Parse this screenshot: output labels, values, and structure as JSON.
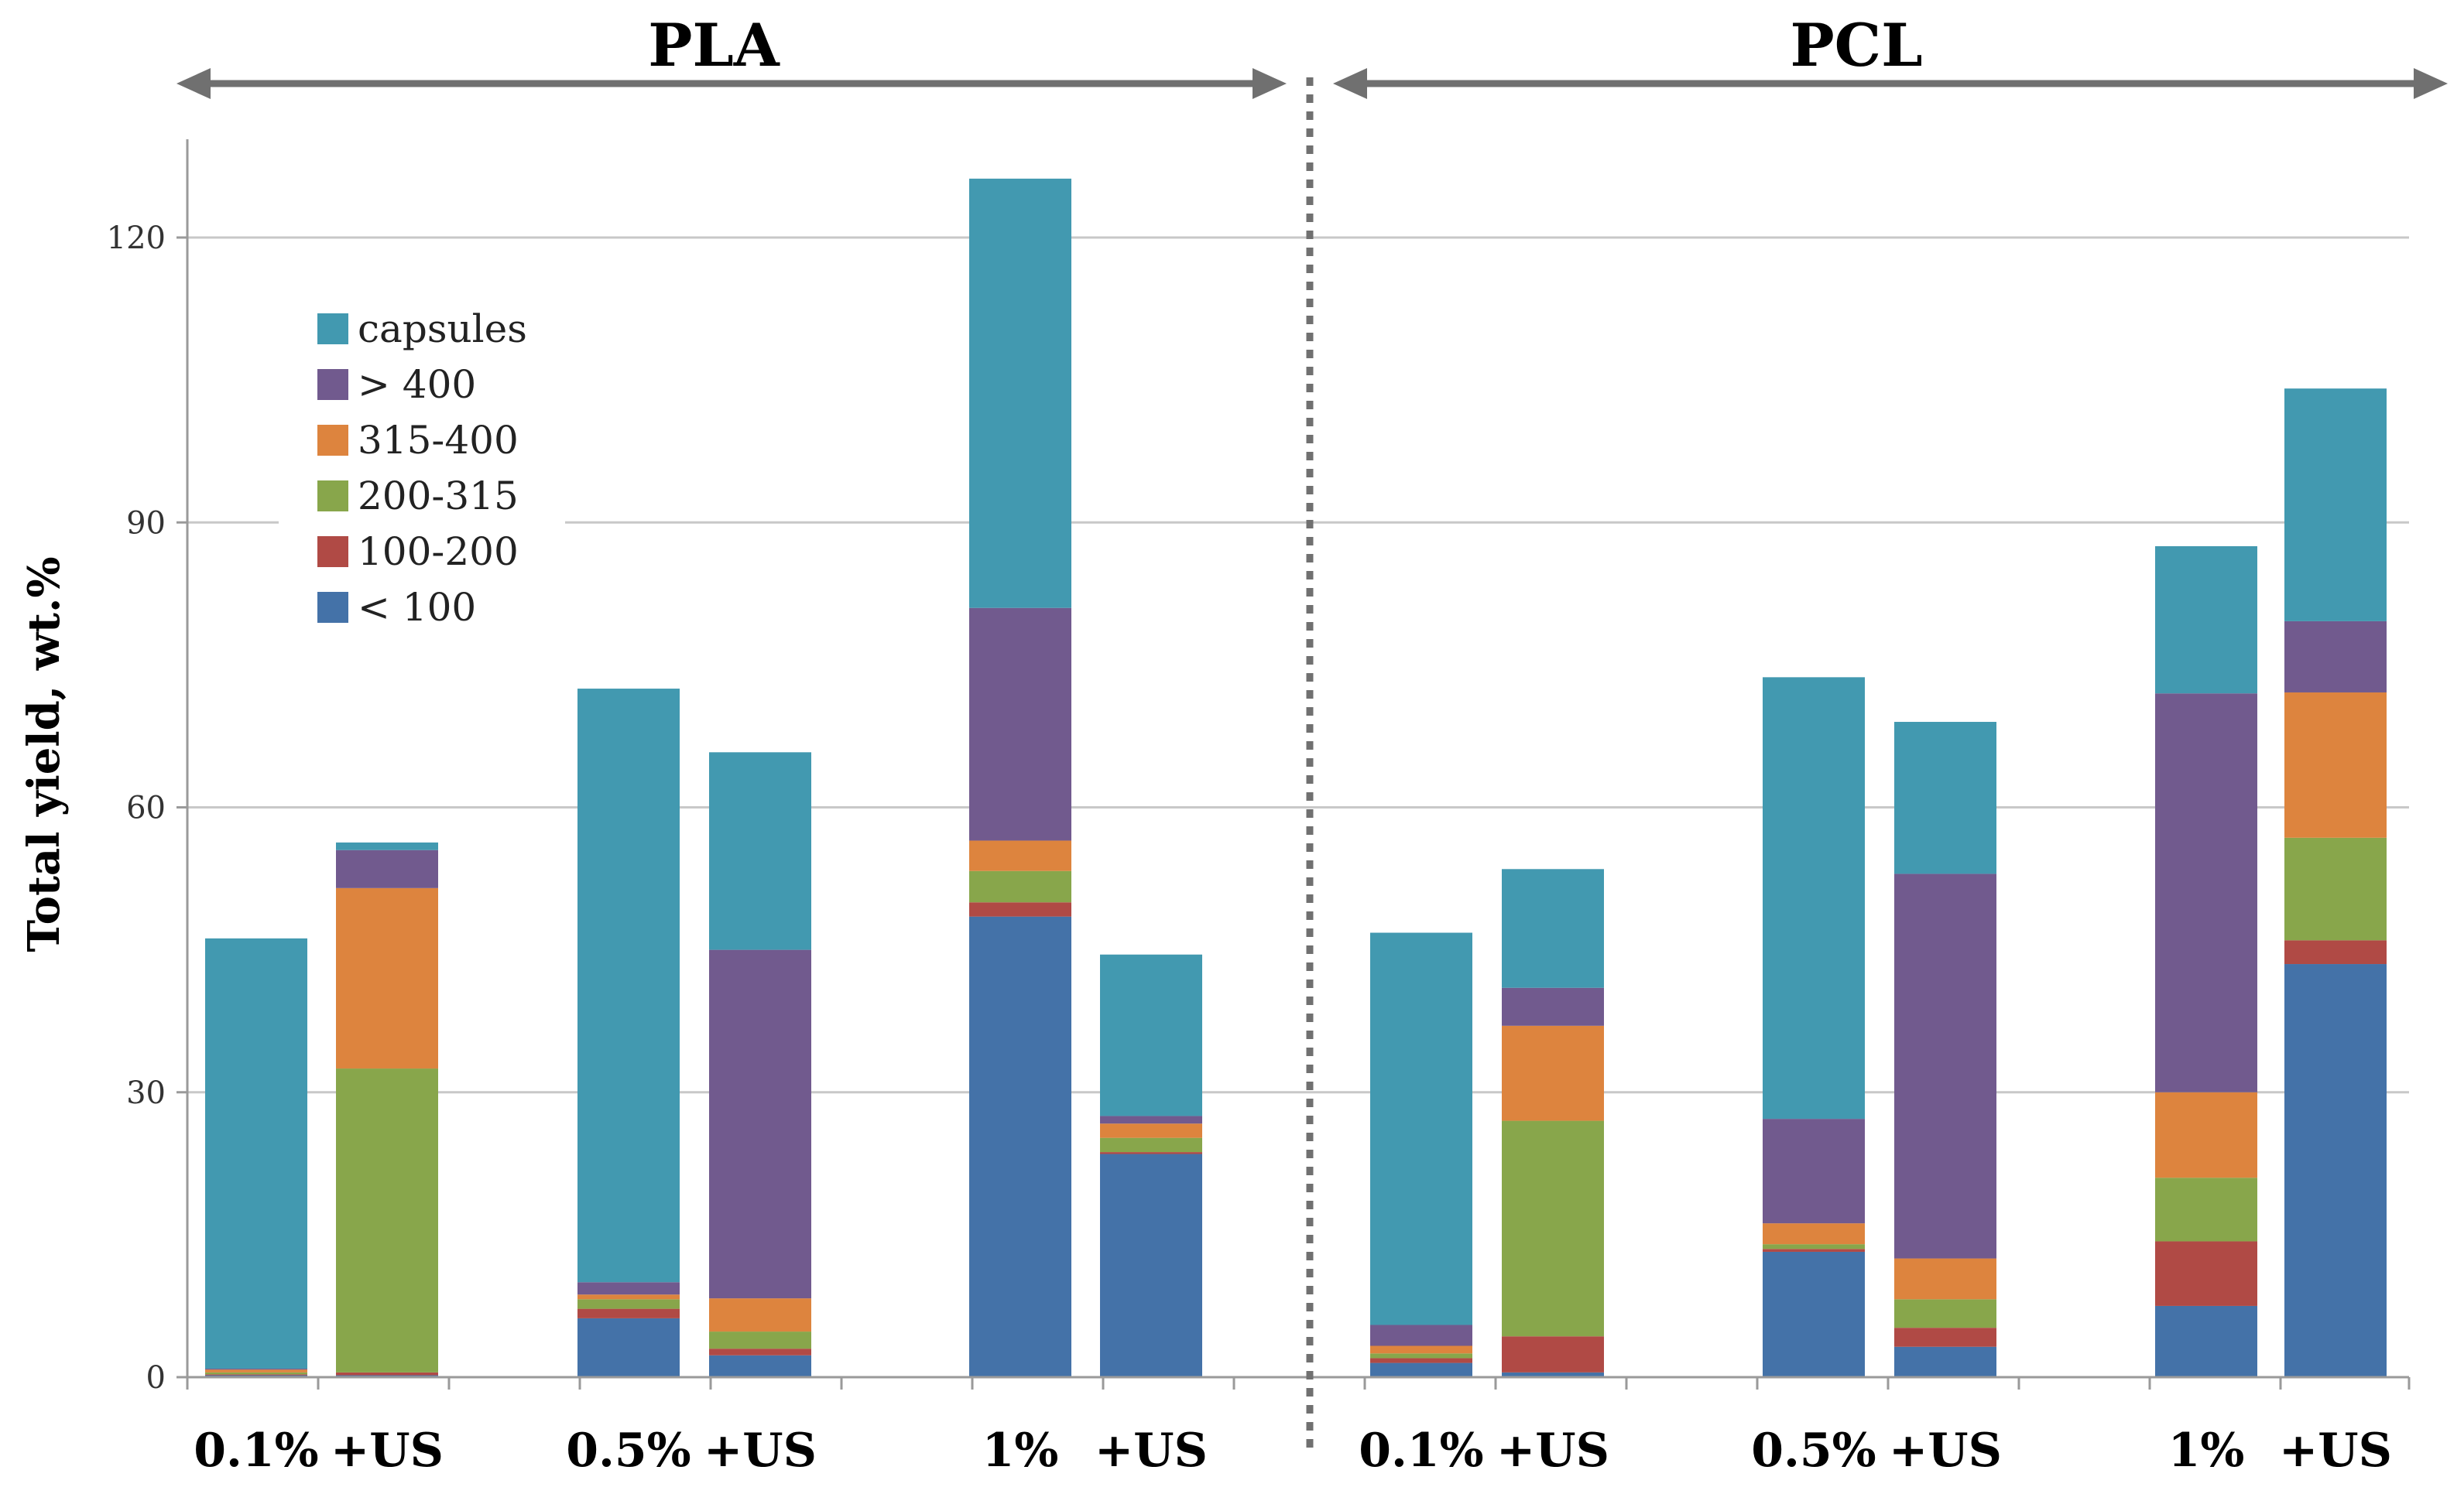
{
  "chart_data": {
    "type": "bar",
    "stacked": true,
    "ylabel": "Total yield, wt.%",
    "ylim": [
      0,
      130
    ],
    "yticks": [
      0,
      30,
      60,
      90,
      120
    ],
    "grid": true,
    "legend_position": "top-left",
    "groups": [
      {
        "label": "PLA",
        "categories": [
          0,
          1,
          2,
          3,
          4,
          5
        ]
      },
      {
        "label": "PCL",
        "categories": [
          6,
          7,
          8,
          9,
          10,
          11
        ]
      }
    ],
    "categories": [
      "0.1%",
      "+US",
      "0.5%",
      "+US",
      "1%",
      "+US",
      "0.1%",
      "+US",
      "0.5%",
      "+US",
      "1%",
      "+US"
    ],
    "series": [
      {
        "name": "< 100",
        "color": "#4472a8",
        "values": [
          0.2,
          0.2,
          6.2,
          2.3,
          48.5,
          23.5,
          1.5,
          0.5,
          13.2,
          3.2,
          7.5,
          43.5
        ]
      },
      {
        "name": "100-200",
        "color": "#b04a45",
        "values": [
          0.1,
          0.3,
          1.0,
          0.7,
          1.5,
          0.2,
          0.5,
          3.8,
          0.3,
          2.0,
          6.8,
          2.5
        ]
      },
      {
        "name": "200-315",
        "color": "#88a64b",
        "values": [
          0.2,
          32.0,
          1.0,
          1.8,
          3.3,
          1.5,
          0.5,
          22.7,
          0.5,
          3.0,
          6.7,
          10.8
        ]
      },
      {
        "name": "315-400",
        "color": "#dd843e",
        "values": [
          0.3,
          19.0,
          0.5,
          3.5,
          3.2,
          1.5,
          0.8,
          10.0,
          2.2,
          4.3,
          9.0,
          15.3
        ]
      },
      {
        "name": "> 400",
        "color": "#715a8e",
        "values": [
          0.1,
          4.0,
          1.3,
          36.7,
          24.5,
          0.8,
          2.2,
          4.0,
          11.0,
          40.5,
          42.0,
          7.5
        ]
      },
      {
        "name": "capsules",
        "color": "#4299b0",
        "values": [
          45.3,
          0.8,
          62.5,
          20.8,
          45.2,
          17.0,
          41.3,
          12.5,
          46.5,
          16.0,
          15.5,
          24.5
        ]
      }
    ],
    "legend_order": [
      "capsules",
      "> 400",
      "315-400",
      "200-315",
      "100-200",
      "< 100"
    ]
  }
}
